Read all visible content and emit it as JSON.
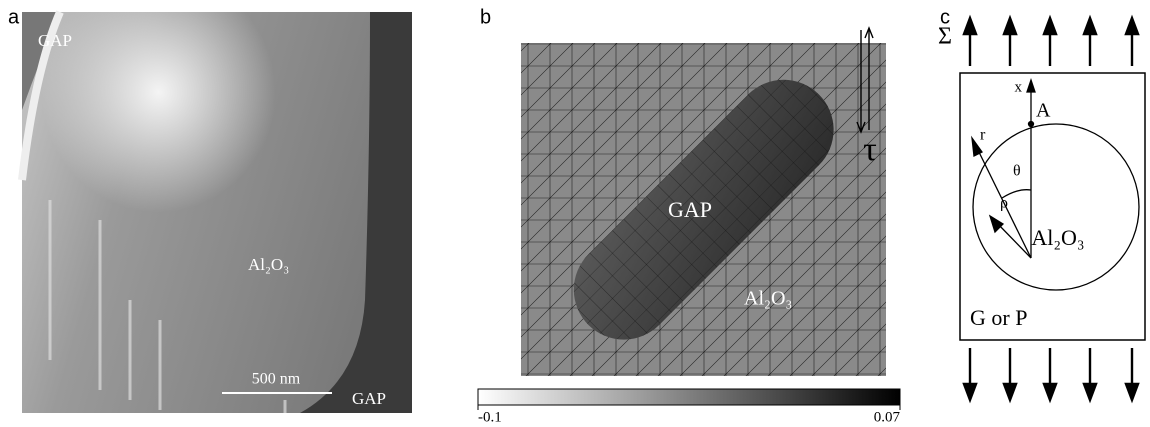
{
  "panel_a": {
    "label": "a",
    "gap_top": "GAP",
    "phase": "Al₂O₃",
    "scale_bar": "500 nm",
    "gap_bottom": "GAP"
  },
  "panel_b": {
    "label": "b",
    "gap": "GAP",
    "phase": "Al₂O₃",
    "shear": "τ",
    "colorbar": {
      "min": -0.1,
      "max": 0.07
    }
  },
  "panel_c": {
    "label": "c",
    "stress": "Σ",
    "axis": "x",
    "point": "A",
    "r": "r",
    "theta": "θ",
    "rho": "ρ",
    "phase": "Al₂O₃",
    "matrix": "G or P"
  }
}
